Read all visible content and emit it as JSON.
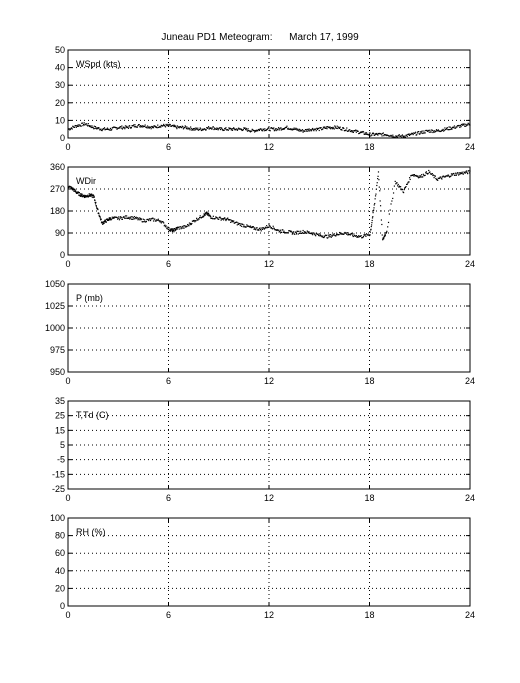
{
  "chart_title": "Juneau PD1 Meteogram:      March 17, 1999",
  "chart_data": [
    {
      "type": "scatter",
      "label": "WSpd (kts)",
      "x_ticks": [
        "0",
        "6",
        "12",
        "18",
        "24"
      ],
      "xlim": [
        0,
        24
      ],
      "ylim": [
        0,
        50
      ],
      "y_ticks": [
        "0",
        "10",
        "20",
        "30",
        "40",
        "50"
      ],
      "grid": true,
      "series": [
        {
          "x": [
            0,
            0.5,
            1,
            1.5,
            2,
            2.5,
            3,
            3.5,
            4,
            4.5,
            5,
            5.5,
            6,
            6.5,
            7,
            7.5,
            8,
            8.5,
            9,
            9.5,
            10,
            10.5,
            11,
            11.5,
            12,
            12.5,
            13,
            13.5,
            14,
            14.5,
            15,
            15.5,
            16,
            16.5,
            17,
            17.5,
            18,
            18.5,
            19,
            19.5,
            20,
            20.5,
            21,
            21.5,
            22,
            22.5,
            23,
            23.5,
            24
          ],
          "y": [
            5,
            7,
            8,
            6,
            5,
            5,
            6,
            6,
            7,
            7,
            6,
            7,
            7,
            6,
            6,
            5,
            5,
            6,
            5,
            5,
            5,
            5,
            4,
            5,
            5,
            5,
            6,
            5,
            4,
            5,
            5,
            6,
            6,
            5,
            4,
            3,
            2,
            2,
            2,
            1,
            1,
            2,
            3,
            4,
            4,
            5,
            6,
            7,
            8
          ]
        }
      ]
    },
    {
      "type": "scatter",
      "label": "WDir",
      "x_ticks": [
        "0",
        "6",
        "12",
        "18",
        "24"
      ],
      "xlim": [
        0,
        24
      ],
      "ylim": [
        0,
        360
      ],
      "y_ticks": [
        "0",
        "90",
        "180",
        "270",
        "360"
      ],
      "grid": true,
      "series": [
        {
          "x": [
            0,
            0.25,
            0.5,
            0.75,
            1,
            1.25,
            1.5,
            1.75,
            2,
            2.25,
            2.5,
            3,
            3.5,
            4,
            4.5,
            5,
            5.5,
            6,
            6.25,
            6.5,
            7,
            7.5,
            8,
            8.25,
            8.5,
            9,
            9.5,
            10,
            10.5,
            11,
            11.5,
            12,
            12.5,
            13,
            13.5,
            14,
            14.5,
            15,
            15.5,
            16,
            16.5,
            17,
            17.5,
            18,
            18.25,
            18.5,
            18.75,
            19,
            19.5,
            20,
            20.5,
            21,
            21.5,
            22,
            22.5,
            23,
            23.5,
            24
          ],
          "y": [
            280,
            270,
            255,
            245,
            240,
            245,
            240,
            180,
            130,
            140,
            150,
            150,
            155,
            150,
            140,
            145,
            140,
            105,
            100,
            110,
            115,
            140,
            160,
            170,
            155,
            150,
            145,
            130,
            120,
            110,
            105,
            120,
            100,
            95,
            90,
            95,
            90,
            80,
            75,
            85,
            90,
            80,
            75,
            85,
            200,
            340,
            60,
            100,
            300,
            260,
            330,
            320,
            340,
            310,
            320,
            330,
            335,
            340
          ]
        }
      ]
    },
    {
      "type": "scatter",
      "label": "P (mb)",
      "x_ticks": [
        "0",
        "6",
        "12",
        "18",
        "24"
      ],
      "xlim": [
        0,
        24
      ],
      "ylim": [
        950,
        1050
      ],
      "y_ticks": [
        "950",
        "975",
        "1000",
        "1025",
        "1050"
      ],
      "grid": true,
      "series": []
    },
    {
      "type": "scatter",
      "label": "T,Td (C)",
      "x_ticks": [
        "0",
        "6",
        "12",
        "18",
        "24"
      ],
      "xlim": [
        0,
        24
      ],
      "ylim": [
        -25,
        35
      ],
      "y_ticks": [
        "-25",
        "-15",
        "-5",
        "5",
        "15",
        "25",
        "35"
      ],
      "grid": true,
      "series": []
    },
    {
      "type": "scatter",
      "label": "RH (%)",
      "x_ticks": [
        "0",
        "6",
        "12",
        "18",
        "24"
      ],
      "xlim": [
        0,
        24
      ],
      "ylim": [
        0,
        100
      ],
      "y_ticks": [
        "0",
        "20",
        "40",
        "60",
        "80",
        "100"
      ],
      "grid": true,
      "series": []
    }
  ]
}
